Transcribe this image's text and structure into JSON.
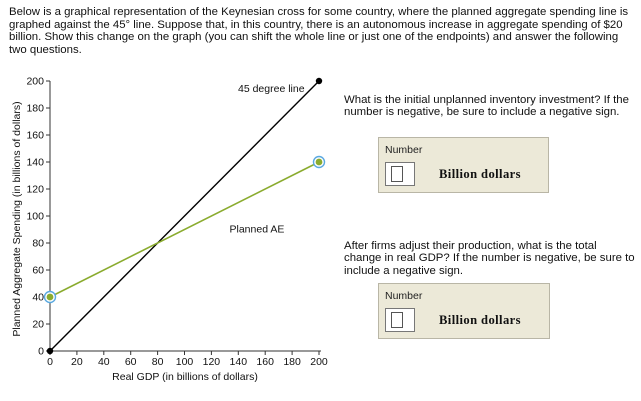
{
  "intro": "Below is a graphical representation of the Keynesian cross for some country, where the planned aggregate spending line is graphed against the 45° line. Suppose that, in this country, there is an autonomous increase in aggregate spending of $20 billion. Show this change on the graph (you can shift the whole line or just one of the endpoints) and answer the following two questions.",
  "questions": [
    {
      "text": "What is the initial unplanned inventory investment? If the number is negative, be sure to include a negative sign.",
      "box_label": "Number",
      "value": "",
      "units": "Billion  dollars"
    },
    {
      "text": "After firms adjust their production, what is the total change in real GDP? If the number is negative, be sure to include a negative sign.",
      "box_label": "Number",
      "value": "",
      "units": "Billion  dollars"
    }
  ],
  "chart_data": {
    "type": "line",
    "xlabel": "Real GDP (in billions of dollars)",
    "ylabel": "Planned Aggregate Spending (in billions of dollars)",
    "xlim": [
      0,
      200
    ],
    "ylim": [
      0,
      200
    ],
    "xticks": [
      0,
      20,
      40,
      60,
      80,
      100,
      120,
      140,
      160,
      180,
      200
    ],
    "yticks": [
      0,
      20,
      40,
      60,
      80,
      100,
      120,
      140,
      160,
      180,
      200
    ],
    "grid": false,
    "series": [
      {
        "name": "45 degree line",
        "x": [
          0,
          200
        ],
        "y": [
          0,
          200
        ],
        "color": "#000000"
      },
      {
        "name": "Planned AE",
        "x": [
          0,
          200
        ],
        "y": [
          40,
          140
        ],
        "color": "#8aab2e"
      }
    ],
    "handle_color": "#5aa8e0"
  }
}
